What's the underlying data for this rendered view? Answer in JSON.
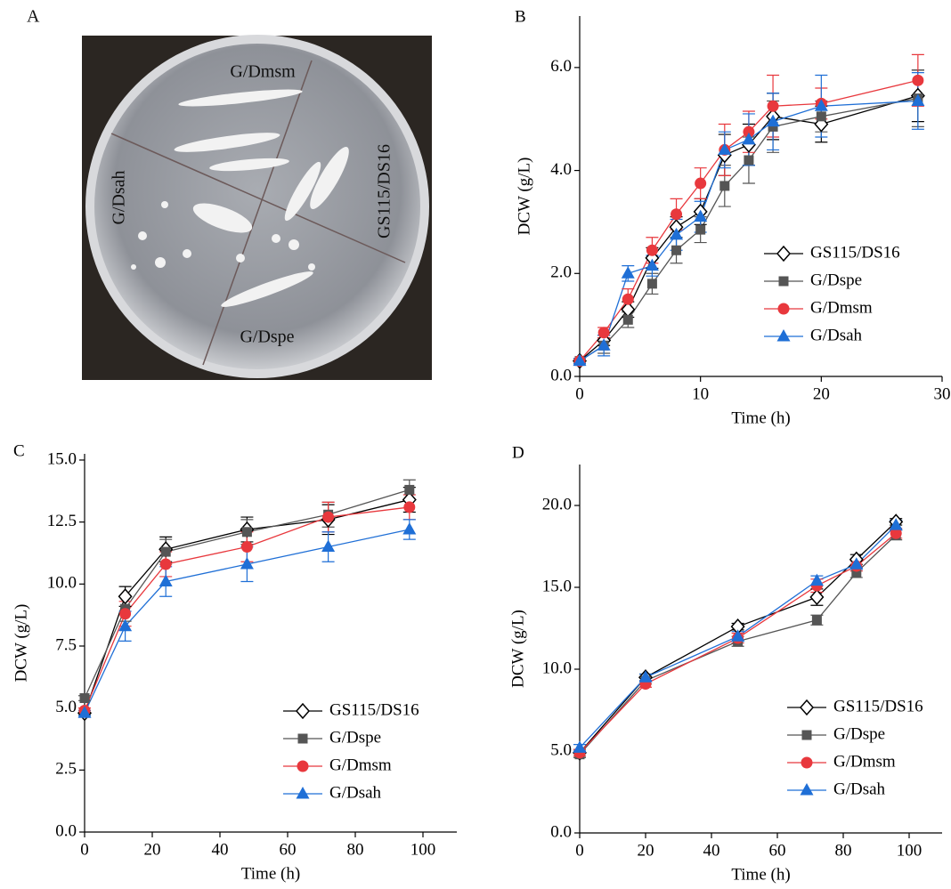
{
  "image_panel": {
    "label": "A",
    "labels": [
      "G/Dmsm",
      "GS115/DS16",
      "G/Dsah",
      "G/Dspe"
    ]
  },
  "chart_data": [
    {
      "type": "line",
      "label": "B",
      "x_label": "Time (h)",
      "y_label": "DCW (g/L)",
      "x": [
        0,
        2,
        4,
        6,
        8,
        10,
        12,
        14,
        16,
        20,
        28
      ],
      "xlim": [
        0,
        30
      ],
      "xticks": [
        0,
        10,
        20,
        30
      ],
      "ylim": [
        0,
        7
      ],
      "yticks": [
        {
          "value": 0,
          "label": "0.0"
        },
        {
          "value": 2,
          "label": "2.0"
        },
        {
          "value": 4,
          "label": "4.0"
        },
        {
          "value": 6,
          "label": "6.0"
        }
      ],
      "legend": "lower right",
      "series": [
        {
          "name": "GS115/DS16",
          "color": "#000000",
          "marker": "diamond",
          "values": [
            0.3,
            0.7,
            1.3,
            2.3,
            2.9,
            3.2,
            4.3,
            4.5,
            5.05,
            4.9,
            5.45
          ],
          "errors": [
            0.05,
            0.1,
            0.15,
            0.2,
            0.2,
            0.25,
            0.4,
            0.4,
            0.45,
            0.35,
            0.5
          ]
        },
        {
          "name": "G/Dspe",
          "color": "#555555",
          "marker": "square",
          "values": [
            0.3,
            0.6,
            1.1,
            1.8,
            2.45,
            2.85,
            3.7,
            4.2,
            4.85,
            5.05,
            5.4
          ],
          "errors": [
            0.05,
            0.15,
            0.15,
            0.2,
            0.25,
            0.25,
            0.4,
            0.45,
            0.5,
            0.3,
            0.55
          ]
        },
        {
          "name": "G/Dmsm",
          "color": "#e8383d",
          "marker": "circle",
          "values": [
            0.3,
            0.85,
            1.5,
            2.45,
            3.15,
            3.75,
            4.4,
            4.75,
            5.25,
            5.3,
            5.75
          ],
          "errors": [
            0.05,
            0.1,
            0.2,
            0.25,
            0.3,
            0.3,
            0.5,
            0.4,
            0.6,
            0.3,
            0.5
          ]
        },
        {
          "name": "G/Dsah",
          "color": "#1f6fd6",
          "marker": "triangle",
          "values": [
            0.3,
            0.6,
            2.0,
            2.15,
            2.75,
            3.1,
            4.4,
            4.6,
            4.95,
            5.25,
            5.35
          ],
          "errors": [
            0.05,
            0.2,
            0.15,
            0.2,
            0.3,
            0.3,
            0.35,
            0.5,
            0.55,
            0.6,
            0.55
          ]
        }
      ]
    },
    {
      "type": "line",
      "label": "C",
      "x_label": "Time (h)",
      "y_label": "DCW (g/L)",
      "x": [
        0,
        12,
        24,
        48,
        72,
        96
      ],
      "xlim": [
        0,
        110
      ],
      "xticks": [
        0,
        20,
        40,
        60,
        80,
        100
      ],
      "ylim": [
        0,
        15.25
      ],
      "yticks": [
        {
          "value": 0,
          "label": "0.0"
        },
        {
          "value": 2.5,
          "label": "2.5"
        },
        {
          "value": 5,
          "label": "5.0"
        },
        {
          "value": 7.5,
          "label": "7.5"
        },
        {
          "value": 10,
          "label": "10.0"
        },
        {
          "value": 12.5,
          "label": "12.5"
        },
        {
          "value": 15,
          "label": "15.0"
        }
      ],
      "legend": "lower right",
      "series": [
        {
          "name": "GS115/DS16",
          "color": "#000000",
          "marker": "diamond",
          "values": [
            4.8,
            9.5,
            11.4,
            12.2,
            12.6,
            13.4
          ],
          "errors": [
            0.1,
            0.4,
            0.5,
            0.5,
            0.6,
            0.5
          ]
        },
        {
          "name": "G/Dspe",
          "color": "#555555",
          "marker": "square",
          "values": [
            5.4,
            9.0,
            11.3,
            12.1,
            12.8,
            13.8
          ],
          "errors": [
            0.1,
            0.5,
            0.5,
            0.5,
            0.5,
            0.4
          ]
        },
        {
          "name": "G/Dmsm",
          "color": "#e8383d",
          "marker": "circle",
          "values": [
            4.9,
            8.8,
            10.8,
            11.5,
            12.7,
            13.1
          ],
          "errors": [
            0.1,
            0.5,
            0.5,
            0.6,
            0.6,
            0.5
          ]
        },
        {
          "name": "G/Dsah",
          "color": "#1f6fd6",
          "marker": "triangle",
          "values": [
            4.8,
            8.3,
            10.1,
            10.8,
            11.5,
            12.2
          ],
          "errors": [
            0.1,
            0.6,
            0.6,
            0.7,
            0.6,
            0.4
          ]
        }
      ]
    },
    {
      "type": "line",
      "label": "D",
      "x_label": "Time (h)",
      "y_label": "DCW (g/L)",
      "x": [
        0,
        20,
        48,
        72,
        84,
        96
      ],
      "xlim": [
        0,
        110
      ],
      "xticks": [
        0,
        20,
        40,
        60,
        80,
        100
      ],
      "ylim": [
        0,
        22.5
      ],
      "yticks": [
        {
          "value": 0,
          "label": "0.0"
        },
        {
          "value": 5,
          "label": "5.0"
        },
        {
          "value": 10,
          "label": "10.0"
        },
        {
          "value": 15,
          "label": "15.0"
        },
        {
          "value": 20,
          "label": "20.0"
        }
      ],
      "legend": "lower right",
      "series": [
        {
          "name": "GS115/DS16",
          "color": "#000000",
          "marker": "diamond",
          "values": [
            4.9,
            9.5,
            12.6,
            14.4,
            16.7,
            19.0
          ],
          "errors": [
            0.2,
            0.2,
            0.2,
            0.5,
            0.3,
            0.2
          ]
        },
        {
          "name": "G/Dspe",
          "color": "#555555",
          "marker": "square",
          "values": [
            4.8,
            9.3,
            11.7,
            13.0,
            15.9,
            18.2
          ],
          "errors": [
            0.2,
            0.2,
            0.3,
            0.3,
            0.3,
            0.3
          ]
        },
        {
          "name": "G/Dmsm",
          "color": "#e8383d",
          "marker": "circle",
          "values": [
            4.9,
            9.1,
            11.9,
            15.1,
            16.3,
            18.3
          ],
          "errors": [
            0.2,
            0.2,
            0.3,
            0.4,
            0.3,
            0.3
          ]
        },
        {
          "name": "G/Dsah",
          "color": "#1f6fd6",
          "marker": "triangle",
          "values": [
            5.2,
            9.5,
            12.0,
            15.4,
            16.4,
            18.8
          ],
          "errors": [
            0.2,
            0.2,
            0.3,
            0.3,
            0.3,
            0.3
          ]
        }
      ]
    }
  ]
}
